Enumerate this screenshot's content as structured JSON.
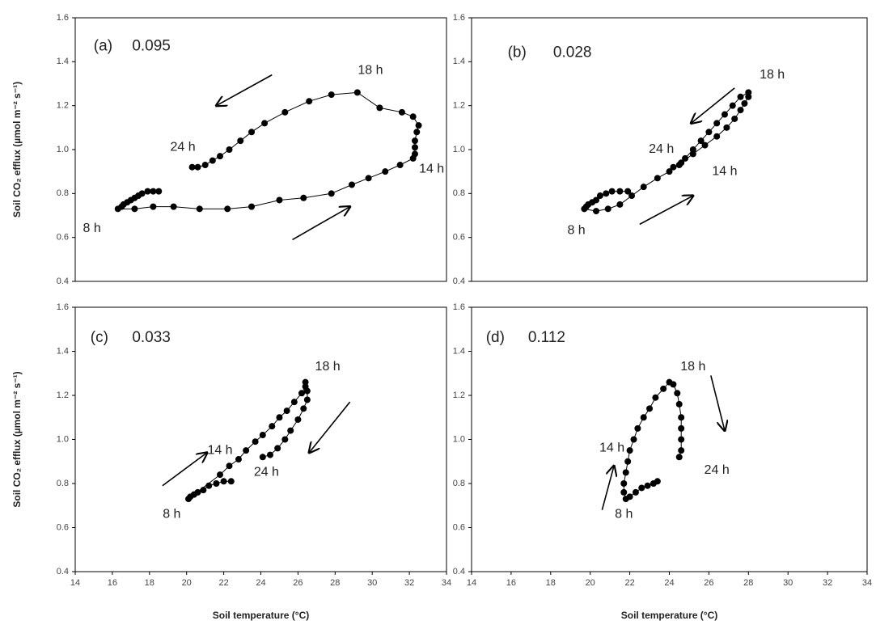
{
  "chart_data": [
    {
      "type": "line",
      "panel_label": "(a)",
      "annotation": "0.095",
      "hour_labels": [
        "18 h",
        "24 h",
        "14 h",
        "8 h"
      ],
      "color": "#000000",
      "ylabel": "Soil CO₂ efflux (µmol m⁻² s⁻¹)",
      "x": [
        18.5,
        18.2,
        17.9,
        17.6,
        17.4,
        17.2,
        17.0,
        16.8,
        16.6,
        16.5,
        16.3,
        17.2,
        18.2,
        19.3,
        20.7,
        22.2,
        23.5,
        25.0,
        26.3,
        27.8,
        28.9,
        29.8,
        30.7,
        31.5,
        32.2,
        32.3,
        32.3,
        32.3,
        32.4,
        32.5,
        32.2,
        31.6,
        30.4,
        29.2,
        27.8,
        26.6,
        25.3,
        24.2,
        23.5,
        22.9,
        22.3,
        21.8,
        21.4,
        21.0,
        20.6,
        20.3
      ],
      "values": [
        0.81,
        0.81,
        0.81,
        0.8,
        0.79,
        0.78,
        0.77,
        0.76,
        0.75,
        0.74,
        0.73,
        0.73,
        0.74,
        0.74,
        0.73,
        0.73,
        0.74,
        0.77,
        0.78,
        0.8,
        0.84,
        0.87,
        0.9,
        0.93,
        0.96,
        0.98,
        1.01,
        1.04,
        1.08,
        1.11,
        1.15,
        1.17,
        1.19,
        1.26,
        1.25,
        1.22,
        1.17,
        1.12,
        1.08,
        1.04,
        1.0,
        0.97,
        0.95,
        0.93,
        0.92,
        0.92
      ],
      "xlim": [
        14,
        34
      ],
      "ylim": [
        0.4,
        1.6
      ],
      "yticks": [
        0.4,
        0.6,
        0.8,
        {
          "value": 1,
          "label": "1.0"
        },
        1.2,
        1.4,
        1.6
      ]
    },
    {
      "type": "line",
      "panel_label": "(b)",
      "annotation": "0.028",
      "hour_labels": [
        "18 h",
        "24 h",
        "14 h",
        "8 h"
      ],
      "color": "#000000",
      "x": [
        21.9,
        21.5,
        21.1,
        20.8,
        20.5,
        20.3,
        20.1,
        19.9,
        19.8,
        19.7,
        20.3,
        20.9,
        21.5,
        22.1,
        22.7,
        23.4,
        24.0,
        24.6,
        25.2,
        25.8,
        26.4,
        26.9,
        27.3,
        27.6,
        27.8,
        28.0,
        28.0,
        27.6,
        27.2,
        26.8,
        26.4,
        26.0,
        25.6,
        25.2,
        24.8,
        24.5,
        24.2
      ],
      "values": [
        0.81,
        0.81,
        0.81,
        0.8,
        0.79,
        0.77,
        0.76,
        0.75,
        0.74,
        0.73,
        0.72,
        0.73,
        0.75,
        0.79,
        0.83,
        0.87,
        0.9,
        0.94,
        0.98,
        1.02,
        1.06,
        1.1,
        1.14,
        1.18,
        1.21,
        1.24,
        1.26,
        1.24,
        1.2,
        1.16,
        1.12,
        1.08,
        1.04,
        1.0,
        0.96,
        0.93,
        0.92
      ],
      "xlim": [
        14,
        34
      ],
      "ylim": [
        0.4,
        1.6
      ],
      "yticks": [
        0.4,
        0.6,
        0.8,
        {
          "value": 1,
          "label": "1.0"
        },
        1.2,
        1.4,
        1.6
      ]
    },
    {
      "type": "line",
      "panel_label": "(c)",
      "annotation": "0.033",
      "hour_labels": [
        "18 h",
        "14 h",
        "24 h",
        "8 h"
      ],
      "color": "#000000",
      "ylabel": "Soil CO₂ efflux (µmol m⁻² s⁻¹)",
      "xlabel": "Soil temperature (°C)",
      "x": [
        22.4,
        22.0,
        21.6,
        21.2,
        20.9,
        20.6,
        20.4,
        20.2,
        20.1,
        21.8,
        22.3,
        22.8,
        23.2,
        23.7,
        24.1,
        24.6,
        25.0,
        25.4,
        25.8,
        26.2,
        26.4,
        26.4,
        26.5,
        26.5,
        26.3,
        26.0,
        25.6,
        25.3,
        24.9,
        24.5,
        24.1
      ],
      "values": [
        0.81,
        0.81,
        0.8,
        0.79,
        0.77,
        0.76,
        0.75,
        0.74,
        0.73,
        0.84,
        0.88,
        0.91,
        0.95,
        0.99,
        1.02,
        1.06,
        1.1,
        1.13,
        1.17,
        1.21,
        1.24,
        1.26,
        1.22,
        1.18,
        1.14,
        1.09,
        1.04,
        1.0,
        0.96,
        0.93,
        0.92
      ],
      "xlim": [
        14,
        34
      ],
      "ylim": [
        0.4,
        1.6
      ],
      "xticks": [
        14,
        16,
        18,
        20,
        22,
        24,
        26,
        28,
        30,
        32,
        34
      ],
      "yticks": [
        0.4,
        0.6,
        0.8,
        {
          "value": 1,
          "label": "1.0"
        },
        1.2,
        1.4,
        1.6
      ]
    },
    {
      "type": "line",
      "panel_label": "(d)",
      "annotation": "0.112",
      "hour_labels": [
        "18 h",
        "14 h",
        "24 h",
        "8 h"
      ],
      "color": "#000000",
      "xlabel": "Soil temperature (°C)",
      "x": [
        23.4,
        23.2,
        22.9,
        22.6,
        22.3,
        22.0,
        21.8,
        21.7,
        21.7,
        21.8,
        21.9,
        22.0,
        22.2,
        22.4,
        22.7,
        23.0,
        23.3,
        23.7,
        24.0,
        24.2,
        24.4,
        24.5,
        24.6,
        24.6,
        24.6,
        24.6,
        24.5
      ],
      "values": [
        0.81,
        0.8,
        0.79,
        0.78,
        0.76,
        0.74,
        0.73,
        0.76,
        0.8,
        0.85,
        0.9,
        0.95,
        1.0,
        1.05,
        1.1,
        1.14,
        1.19,
        1.23,
        1.26,
        1.25,
        1.21,
        1.16,
        1.1,
        1.05,
        1.0,
        0.95,
        0.92
      ],
      "xlim": [
        14,
        34
      ],
      "ylim": [
        0.4,
        1.6
      ],
      "xticks": [
        14,
        16,
        18,
        20,
        22,
        24,
        26,
        28,
        30,
        32,
        34
      ],
      "yticks": [
        0.4,
        0.6,
        0.8,
        {
          "value": 1,
          "label": "1.0"
        },
        1.2,
        1.4,
        1.6
      ]
    }
  ]
}
